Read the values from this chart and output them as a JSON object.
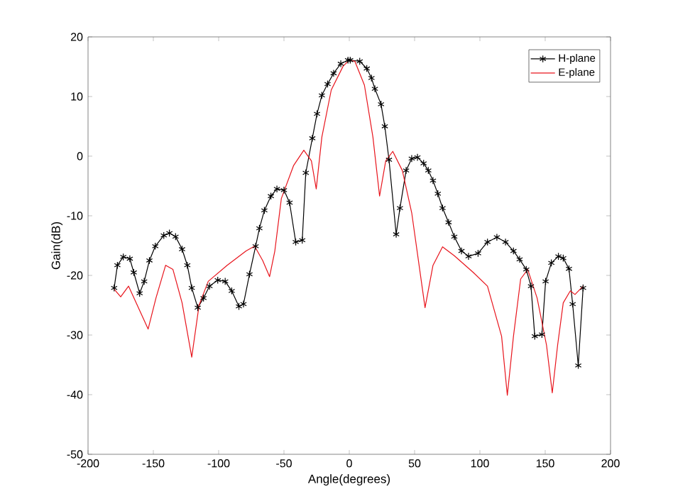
{
  "chart_data": {
    "type": "line",
    "xlabel": "Angle(degrees)",
    "ylabel": "Gain(dB)",
    "xlim": [
      -200,
      200
    ],
    "ylim": [
      -50,
      20
    ],
    "xticks": [
      -200,
      -150,
      -100,
      -50,
      0,
      50,
      100,
      150,
      200
    ],
    "yticks": [
      -50,
      -40,
      -30,
      -20,
      -10,
      0,
      10,
      20
    ],
    "legend": "top right",
    "series": [
      {
        "name": "H-plane",
        "color": "#000000",
        "marker": "cross",
        "x": [
          -180,
          -177.5,
          -173,
          -168,
          -165,
          -160.5,
          -157,
          -153,
          -148.5,
          -142,
          -137.7,
          -133,
          -128,
          -124,
          -120.6,
          -116,
          -111.6,
          -107,
          -100.7,
          -95,
          -90,
          -84.5,
          -81,
          -76.4,
          -71.7,
          -68.8,
          -65,
          -60,
          -55.4,
          -50,
          -45.7,
          -41,
          -36,
          -33.3,
          -28.3,
          -24.7,
          -21,
          -16.6,
          -12,
          -6.5,
          -1,
          0.7,
          8,
          13.4,
          17,
          19.6,
          24.3,
          27.2,
          30.4,
          35.9,
          38.8,
          43.5,
          47.8,
          52.2,
          56.9,
          60.5,
          64.1,
          67.8,
          71.4,
          76,
          80.4,
          85.9,
          91.3,
          98.6,
          105.8,
          113,
          119.6,
          125.7,
          130.4,
          135.5,
          139.1,
          142,
          147.5,
          150.3,
          154.7,
          160.1,
          163.8,
          168.2,
          171,
          175.3,
          179
        ],
        "values": [
          -22.1,
          -18.3,
          -16.9,
          -17.2,
          -19.5,
          -23,
          -21,
          -17.5,
          -15.1,
          -13.3,
          -12.9,
          -13.5,
          -15.6,
          -18.3,
          -22.1,
          -25.4,
          -23.8,
          -21.8,
          -20.8,
          -21,
          -22.6,
          -25.2,
          -24.8,
          -19.8,
          -15.1,
          -12.1,
          -9.1,
          -6.7,
          -5.5,
          -5.7,
          -7.8,
          -14.4,
          -14.1,
          -2.8,
          3,
          7.1,
          10.2,
          12.1,
          13.9,
          15.5,
          16.1,
          16.1,
          15.9,
          14.7,
          13.1,
          11.3,
          8.7,
          5,
          -0.6,
          -13.1,
          -8.7,
          -2.4,
          -0.4,
          -0.2,
          -1.2,
          -2.4,
          -4.1,
          -6.3,
          -8.7,
          -11.1,
          -13.5,
          -15.9,
          -16.8,
          -16.3,
          -14.4,
          -13.6,
          -14.4,
          -15.9,
          -17.3,
          -19,
          -21.8,
          -30.2,
          -29.9,
          -21,
          -17.9,
          -16.8,
          -17.1,
          -18.9,
          -24.8,
          -35.1,
          -22.1
        ]
      },
      {
        "name": "E-plane",
        "color": "#e8141c",
        "marker": "none",
        "x": [
          -180,
          -175,
          -169,
          -164,
          -154,
          -148,
          -140.6,
          -135,
          -128,
          -120.6,
          -115,
          -108,
          -93.5,
          -79,
          -72.5,
          -66.3,
          -61,
          -57,
          -52,
          -42.7,
          -34.8,
          -29,
          -25.3,
          -21,
          -13.8,
          -4.7,
          0,
          4.3,
          11.6,
          18.1,
          23.2,
          27.9,
          33.3,
          40.6,
          47.8,
          58,
          64.1,
          71.4,
          80.4,
          94.9,
          105.8,
          116.6,
          121,
          125.7,
          131.2,
          136.6,
          143.8,
          151,
          155.4,
          159.5,
          163.8,
          169.2,
          172.8,
          179
        ],
        "values": [
          -22.3,
          -23.6,
          -21.8,
          -24.2,
          -29,
          -23.8,
          -18.3,
          -19,
          -24.6,
          -33.7,
          -25,
          -21,
          -18.3,
          -15.9,
          -15.1,
          -17.5,
          -20.2,
          -15.9,
          -7.1,
          -1.6,
          1,
          -0.8,
          -5.5,
          3.2,
          11.1,
          15.1,
          16.1,
          15.9,
          11.9,
          3.2,
          -6.7,
          -0.8,
          0.8,
          -2.4,
          -9.5,
          -25.4,
          -18.3,
          -15.2,
          -16.7,
          -19.5,
          -21.8,
          -30.2,
          -40.1,
          -30.2,
          -20.6,
          -19,
          -23.8,
          -31.7,
          -39.7,
          -31.7,
          -24.6,
          -22.6,
          -23.2,
          -21.8
        ]
      }
    ]
  }
}
